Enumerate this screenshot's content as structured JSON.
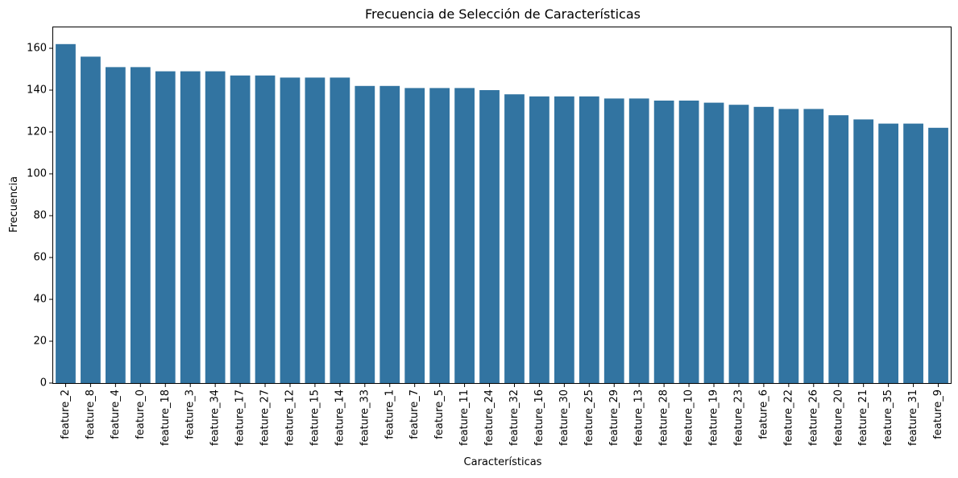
{
  "chart_data": {
    "type": "bar",
    "title": "Frecuencia de Selección de Características",
    "xlabel": "Características",
    "ylabel": "Frecuencia",
    "ylim": [
      0,
      170
    ],
    "yticks": [
      0,
      20,
      40,
      60,
      80,
      100,
      120,
      140,
      160
    ],
    "grid": false,
    "bar_color": "#3274a1",
    "categories": [
      "feature_2",
      "feature_8",
      "feature_4",
      "feature_0",
      "feature_18",
      "feature_3",
      "feature_34",
      "feature_17",
      "feature_27",
      "feature_12",
      "feature_15",
      "feature_14",
      "feature_33",
      "feature_1",
      "feature_7",
      "feature_5",
      "feature_11",
      "feature_24",
      "feature_32",
      "feature_16",
      "feature_30",
      "feature_25",
      "feature_29",
      "feature_13",
      "feature_28",
      "feature_10",
      "feature_19",
      "feature_23",
      "feature_6",
      "feature_22",
      "feature_26",
      "feature_20",
      "feature_21",
      "feature_35",
      "feature_31",
      "feature_9"
    ],
    "values": [
      162,
      156,
      151,
      151,
      149,
      149,
      149,
      147,
      147,
      146,
      146,
      146,
      142,
      142,
      141,
      141,
      141,
      140,
      138,
      137,
      137,
      137,
      136,
      136,
      135,
      135,
      134,
      133,
      132,
      131,
      131,
      128,
      126,
      124,
      124,
      122
    ]
  }
}
